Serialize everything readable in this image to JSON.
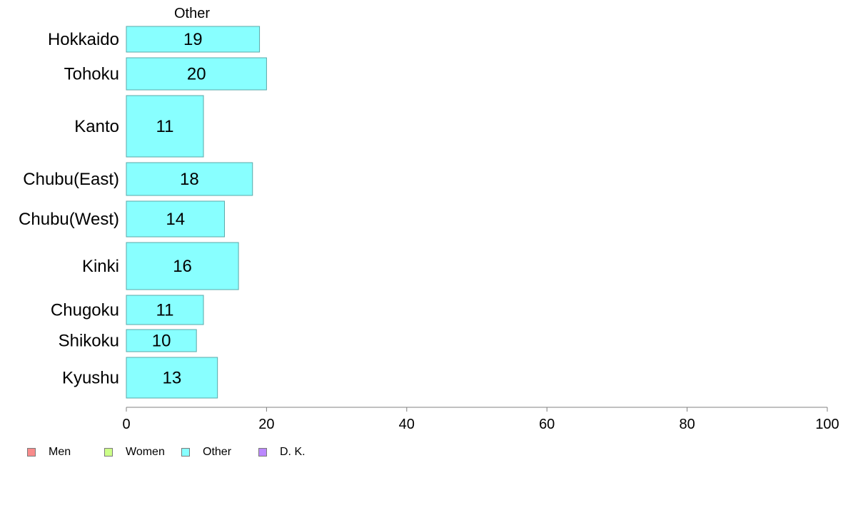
{
  "chart_data": {
    "type": "bar",
    "orientation": "horizontal",
    "title": "Other",
    "categories": [
      "Hokkaido",
      "Tohoku",
      "Kanto",
      "Chubu(East)",
      "Chubu(West)",
      "Kinki",
      "Chugoku",
      "Shikoku",
      "Kyushu"
    ],
    "values": [
      19,
      20,
      11,
      18,
      14,
      16,
      11,
      10,
      13
    ],
    "xlim": [
      0,
      100
    ],
    "xticks": [
      0,
      20,
      40,
      60,
      80,
      100
    ],
    "xlabel": "",
    "ylabel": "",
    "grid": false,
    "bar_color": "#88ffff",
    "legend_position": "bottom-left",
    "legend": [
      {
        "label": "Men",
        "color": "#f88b8b"
      },
      {
        "label": "Women",
        "color": "#ccff88"
      },
      {
        "label": "Other",
        "color": "#88ffff"
      },
      {
        "label": "D. K.",
        "color": "#bb88ff"
      }
    ]
  }
}
